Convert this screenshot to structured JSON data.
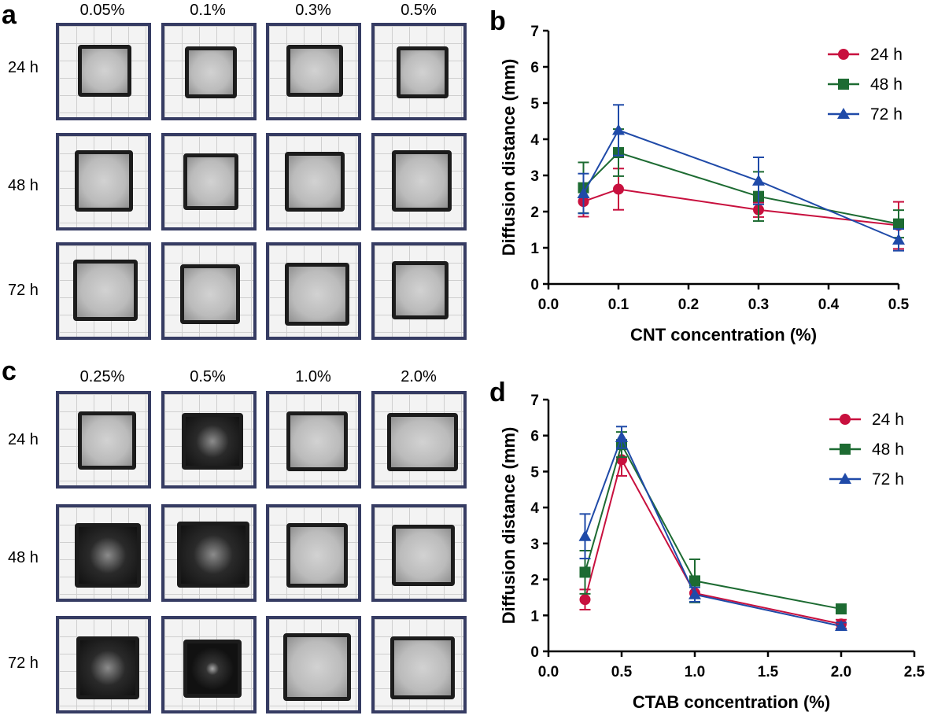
{
  "panels": {
    "a": {
      "letter": "a",
      "concentrations": [
        "0.05%",
        "0.1%",
        "0.3%",
        "0.5%"
      ],
      "times": [
        "24 h",
        "48 h",
        "72 h"
      ]
    },
    "b": {
      "letter": "b"
    },
    "c": {
      "letter": "c",
      "concentrations": [
        "0.25%",
        "0.5%",
        "1.0%",
        "2.0%"
      ],
      "times": [
        "24 h",
        "48 h",
        "72 h"
      ]
    },
    "d": {
      "letter": "d"
    }
  },
  "colors": {
    "24h": "#c8103e",
    "48h": "#1d6b32",
    "72h": "#1f4aa8",
    "frame": "#363c63"
  },
  "chart_data": [
    {
      "type": "line",
      "title": "",
      "xlabel": "CNT concentration (%)",
      "ylabel": "Diffusion distance (mm)",
      "xlim": [
        0.0,
        0.5
      ],
      "ylim": [
        0,
        7
      ],
      "xticks": [
        0.0,
        0.1,
        0.2,
        0.3,
        0.4,
        0.5
      ],
      "xtick_labels": [
        "0.0",
        "0.1",
        "0.2",
        "0.3",
        "0.4",
        "0.5"
      ],
      "yticks": [
        0,
        1,
        2,
        3,
        4,
        5,
        6,
        7
      ],
      "ytick_labels": [
        "0",
        "1",
        "2",
        "3",
        "4",
        "5",
        "6",
        "7"
      ],
      "legend_position": "top-right",
      "series": [
        {
          "name": "24 h",
          "marker": "circle",
          "color": "#c8103e",
          "x": [
            0.05,
            0.1,
            0.3,
            0.5
          ],
          "y": [
            2.28,
            2.62,
            2.05,
            1.62
          ],
          "err": [
            0.42,
            0.57,
            0.2,
            0.65
          ]
        },
        {
          "name": "48 h",
          "marker": "square",
          "color": "#1d6b32",
          "x": [
            0.05,
            0.1,
            0.3,
            0.5
          ],
          "y": [
            2.66,
            3.63,
            2.42,
            1.66
          ],
          "err": [
            0.7,
            0.65,
            0.68,
            0.38
          ]
        },
        {
          "name": "72 h",
          "marker": "triangle",
          "color": "#1f4aa8",
          "x": [
            0.05,
            0.1,
            0.3,
            0.5
          ],
          "y": [
            2.5,
            4.25,
            2.85,
            1.22
          ],
          "err": [
            0.55,
            0.7,
            0.65,
            0.3
          ]
        }
      ]
    },
    {
      "type": "line",
      "title": "",
      "xlabel": "CTAB concentration (%)",
      "ylabel": "Diffusion distance (mm)",
      "xlim": [
        0.0,
        2.5
      ],
      "ylim": [
        0,
        7
      ],
      "xticks": [
        0.0,
        0.5,
        1.0,
        1.5,
        2.0,
        2.5
      ],
      "xtick_labels": [
        "0.0",
        "0.5",
        "1.0",
        "1.5",
        "2.0",
        "2.5"
      ],
      "yticks": [
        0,
        1,
        2,
        3,
        4,
        5,
        6,
        7
      ],
      "ytick_labels": [
        "0",
        "1",
        "2",
        "3",
        "4",
        "5",
        "6",
        "7"
      ],
      "legend_position": "top-right",
      "series": [
        {
          "name": "24 h",
          "marker": "circle",
          "color": "#c8103e",
          "x": [
            0.25,
            0.5,
            1.0,
            2.0
          ],
          "y": [
            1.44,
            5.33,
            1.62,
            0.76
          ],
          "err": [
            0.28,
            0.45,
            0.25,
            0.12
          ]
        },
        {
          "name": "48 h",
          "marker": "square",
          "color": "#1d6b32",
          "x": [
            0.25,
            0.5,
            1.0,
            2.0
          ],
          "y": [
            2.2,
            5.75,
            1.96,
            1.18
          ],
          "err": [
            0.6,
            0.35,
            0.6,
            0.1
          ]
        },
        {
          "name": "72 h",
          "marker": "triangle",
          "color": "#1f4aa8",
          "x": [
            0.25,
            0.5,
            1.0,
            2.0
          ],
          "y": [
            3.2,
            5.95,
            1.58,
            0.7
          ],
          "err": [
            0.62,
            0.3,
            0.2,
            0.1
          ]
        }
      ]
    }
  ]
}
